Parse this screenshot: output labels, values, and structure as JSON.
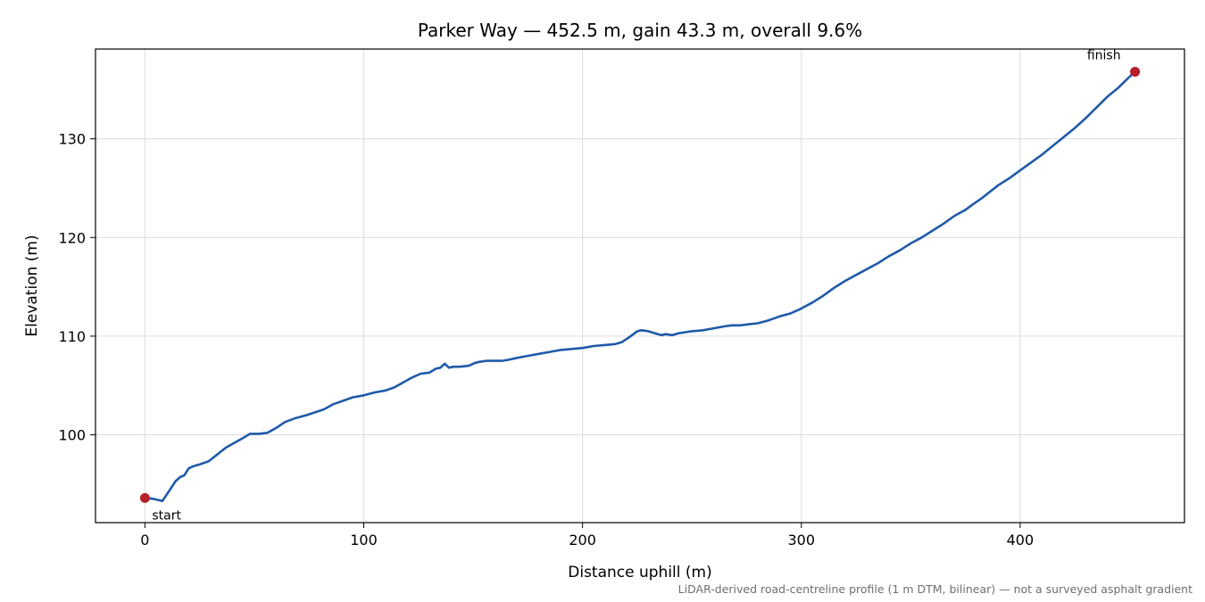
{
  "chart_data": {
    "type": "line",
    "title": "Parker Way — 452.5 m, gain 43.3 m, overall 9.6%",
    "xlabel": "Distance uphill (m)",
    "ylabel": "Elevation (m)",
    "footnote": "LiDAR-derived road-centreline profile (1 m DTM, bilinear) — not a surveyed asphalt gradient",
    "xlim": [
      -22.6,
      475.1
    ],
    "ylim": [
      91.1,
      139.1
    ],
    "xticks": [
      0,
      100,
      200,
      300,
      400
    ],
    "yticks": [
      100,
      110,
      120,
      130
    ],
    "grid": true,
    "line_color": "#1f5aa8",
    "marker_color": "#b5202a",
    "series": [
      {
        "x": [
          0,
          4,
          6,
          8,
          11,
          14,
          16,
          18,
          20,
          22,
          25,
          29,
          33,
          37,
          41,
          45,
          48,
          52,
          56,
          60,
          64,
          69,
          74,
          78,
          82,
          86,
          90,
          95,
          100,
          105,
          110,
          114,
          118,
          122,
          126,
          130,
          133,
          135,
          137,
          139,
          141,
          144,
          148,
          151,
          153,
          156,
          159,
          163,
          166,
          170,
          175,
          180,
          185,
          190,
          195,
          200,
          205,
          210,
          215,
          218,
          222,
          225,
          227,
          230,
          233,
          236,
          238,
          241,
          244,
          247,
          250,
          255,
          260,
          265,
          268,
          272,
          276,
          280,
          285,
          290,
          295,
          300,
          305,
          310,
          315,
          320,
          325,
          330,
          335,
          340,
          345,
          350,
          355,
          360,
          365,
          370,
          375,
          378,
          382,
          386,
          390,
          395,
          400,
          405,
          410,
          415,
          420,
          425,
          430,
          435,
          440,
          445,
          450,
          452.5
        ],
        "y": [
          93.6,
          93.5,
          93.4,
          93.3,
          94.3,
          95.3,
          95.7,
          95.9,
          96.6,
          96.8,
          97.0,
          97.3,
          98.0,
          98.7,
          99.2,
          99.7,
          100.1,
          100.1,
          100.2,
          100.7,
          101.3,
          101.7,
          102.0,
          102.3,
          102.6,
          103.1,
          103.4,
          103.8,
          104.0,
          104.3,
          104.5,
          104.8,
          105.3,
          105.8,
          106.2,
          106.3,
          106.7,
          106.8,
          107.2,
          106.8,
          106.9,
          106.9,
          107.0,
          107.3,
          107.4,
          107.5,
          107.5,
          107.5,
          107.6,
          107.8,
          108.0,
          108.2,
          108.4,
          108.6,
          108.7,
          108.8,
          109.0,
          109.1,
          109.2,
          109.4,
          110.0,
          110.5,
          110.6,
          110.5,
          110.3,
          110.1,
          110.2,
          110.1,
          110.3,
          110.4,
          110.5,
          110.6,
          110.8,
          111.0,
          111.1,
          111.1,
          111.2,
          111.3,
          111.6,
          112.0,
          112.3,
          112.8,
          113.4,
          114.1,
          114.9,
          115.6,
          116.2,
          116.8,
          117.4,
          118.1,
          118.7,
          119.4,
          120.0,
          120.7,
          121.4,
          122.2,
          122.8,
          123.3,
          123.9,
          124.6,
          125.3,
          126.0,
          126.8,
          127.6,
          128.4,
          129.3,
          130.2,
          131.1,
          132.1,
          133.2,
          134.3,
          135.2,
          136.3,
          136.8
        ]
      }
    ],
    "annotations": [
      {
        "text": "start",
        "x": 0,
        "y": 93.6
      },
      {
        "text": "finish",
        "x": 452.5,
        "y": 136.8
      }
    ]
  }
}
